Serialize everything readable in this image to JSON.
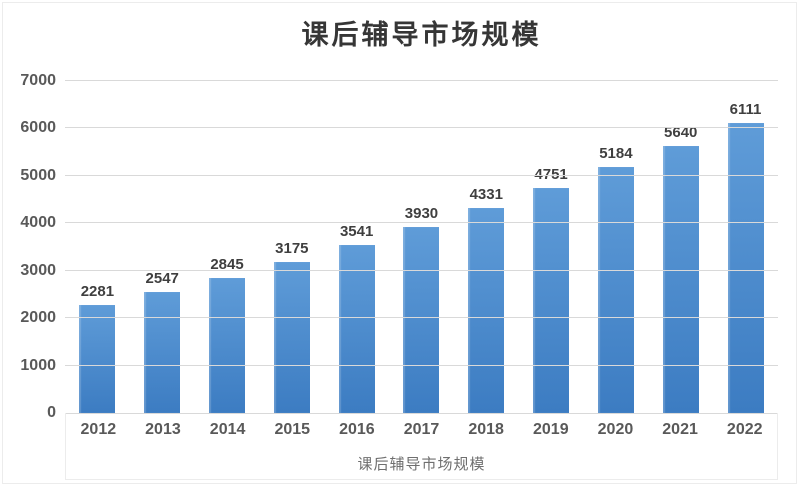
{
  "chart_data": {
    "type": "bar",
    "title": "课后辅导市场规模",
    "categories": [
      "2012",
      "2013",
      "2014",
      "2015",
      "2016",
      "2017",
      "2018",
      "2019",
      "2020",
      "2021",
      "2022"
    ],
    "values": [
      2281,
      2547,
      2845,
      3175,
      3541,
      3930,
      4331,
      4751,
      5184,
      5640,
      6111
    ],
    "xlabel": "课后辅导市场规模",
    "ylabel": "",
    "ylim": [
      0,
      7000
    ],
    "yticks": [
      0,
      1000,
      2000,
      3000,
      4000,
      5000,
      6000,
      7000
    ],
    "grid": true,
    "legend": "none",
    "data_labels": true,
    "colors": {
      "bar_gradient_top": "#5f9cd8",
      "bar_gradient_bottom": "#3c7cc2",
      "gridline": "#d9d9d9",
      "data_label": "#3f3f3f",
      "tick_label": "#595959",
      "axis_title": "#6f6f6f",
      "title": "#363636",
      "border": "#ececec",
      "background": "#ffffff"
    }
  }
}
